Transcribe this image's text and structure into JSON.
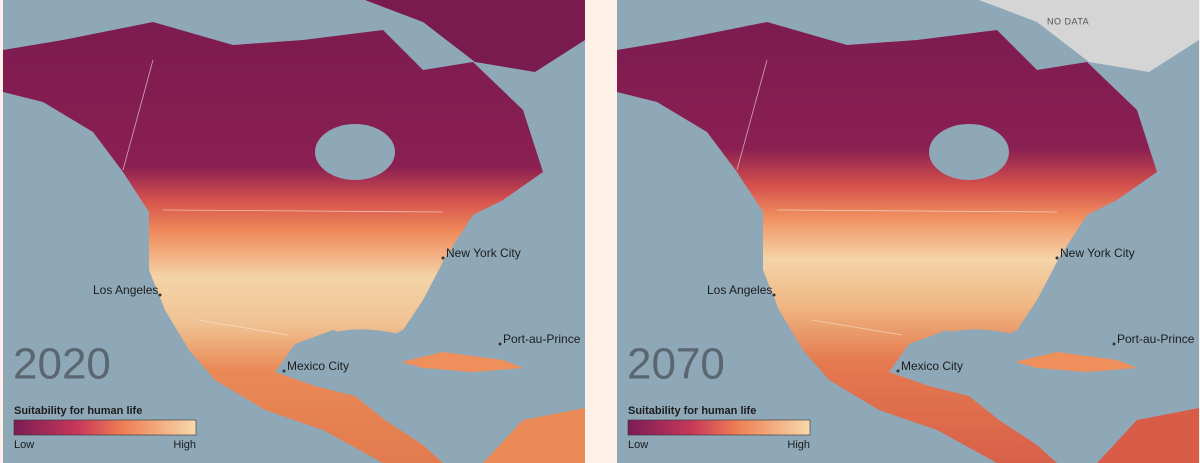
{
  "panels": [
    {
      "year": "2020",
      "city_labels": [
        "Los Angeles",
        "New York City",
        "Mexico City",
        "Port-au-Prince"
      ],
      "legend": {
        "title": "Suitability for human life",
        "low": "Low",
        "high": "High"
      }
    },
    {
      "year": "2070",
      "no_data_label": "NO DATA",
      "city_labels": [
        "Los Angeles",
        "New York City",
        "Mexico City",
        "Port-au-Prince"
      ],
      "legend": {
        "title": "Suitability for human life",
        "low": "Low",
        "high": "High"
      }
    }
  ]
}
